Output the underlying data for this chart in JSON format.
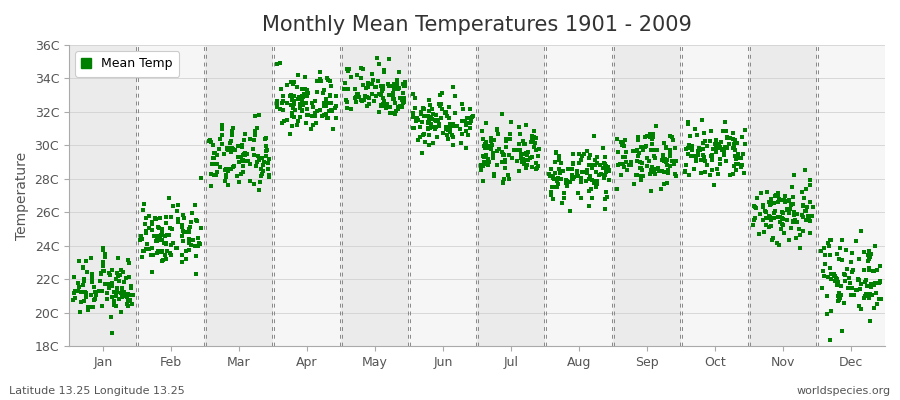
{
  "title": "Monthly Mean Temperatures 1901 - 2009",
  "ylabel": "Temperature",
  "footnote_left": "Latitude 13.25 Longitude 13.25",
  "footnote_right": "worldspecies.org",
  "ylim": [
    18,
    36
  ],
  "ytick_labels": [
    "18C",
    "20C",
    "22C",
    "24C",
    "26C",
    "28C",
    "30C",
    "32C",
    "34C",
    "36C"
  ],
  "ytick_values": [
    18,
    20,
    22,
    24,
    26,
    28,
    30,
    32,
    34,
    36
  ],
  "months": [
    "Jan",
    "Feb",
    "Mar",
    "Apr",
    "May",
    "Jun",
    "Jul",
    "Aug",
    "Sep",
    "Oct",
    "Nov",
    "Dec"
  ],
  "mean_temps": [
    21.5,
    24.5,
    29.2,
    32.5,
    33.3,
    31.5,
    29.5,
    28.2,
    29.2,
    29.5,
    26.0,
    22.2
  ],
  "std_temps": [
    0.9,
    0.9,
    1.0,
    0.9,
    0.8,
    0.8,
    0.7,
    0.8,
    0.8,
    0.9,
    1.0,
    1.2
  ],
  "n_years": 109,
  "marker_color": "#008000",
  "marker_size": 5,
  "background_color": "#ffffff",
  "plot_bg_color": "#f4f4f4",
  "band_color_even": "#ebebeb",
  "band_color_odd": "#f6f6f6",
  "dashed_line_color": "#888888",
  "legend_label": "Mean Temp",
  "title_fontsize": 15,
  "axis_fontsize": 10,
  "tick_fontsize": 9,
  "legend_fontsize": 9
}
